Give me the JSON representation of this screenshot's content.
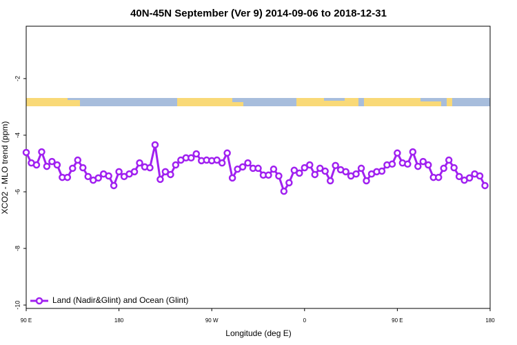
{
  "chart_data": {
    "type": "line",
    "title": "40N-45N September (Ver 9)   2014-09-06 to 2018-12-31",
    "x_label": "Longitude (deg E)",
    "y_label": "XCO2 - MLO trend (ppm)",
    "xlim": [
      90,
      540
    ],
    "xticks": [
      {
        "value": 90,
        "label": "90 E"
      },
      180,
      {
        "value": 270,
        "label": "90 W"
      },
      {
        "value": 360,
        "label": "0"
      },
      {
        "value": 450,
        "label": "90 E"
      },
      {
        "value": 540,
        "label": "180"
      }
    ],
    "ylim": [
      -10.12,
      -0.15
    ],
    "yticks": [
      -2,
      -4,
      -6,
      -8,
      -10
    ],
    "legend": "bottom-left",
    "x": [
      90,
      95,
      100,
      105,
      110,
      115,
      120,
      125,
      130,
      135,
      140,
      145,
      150,
      155,
      160,
      165,
      170,
      175,
      180,
      185,
      190,
      195,
      200,
      205,
      210,
      215,
      220,
      225,
      230,
      235,
      240,
      245,
      250,
      255,
      260,
      265,
      270,
      275,
      280,
      285,
      290,
      295,
      300,
      305,
      310,
      315,
      320,
      325,
      330,
      335,
      340,
      345,
      350,
      355,
      360,
      365,
      370,
      375,
      380,
      385,
      390,
      395,
      400,
      405,
      410,
      415,
      420,
      425,
      430,
      435,
      440,
      445,
      450,
      455,
      460,
      465,
      470,
      475,
      480,
      485,
      490,
      495,
      500,
      505,
      510,
      515,
      520,
      525,
      530,
      535
    ],
    "series": [
      {
        "name": "Land (Nadir&Glint) and Ocean (Glint)",
        "color": "#a020f0",
        "values": [
          -4.61,
          -4.98,
          -5.05,
          -4.59,
          -5.1,
          -4.93,
          -5.05,
          -5.49,
          -5.49,
          -5.17,
          -4.88,
          -5.15,
          -5.46,
          -5.59,
          -5.51,
          -5.37,
          -5.44,
          -5.78,
          -5.29,
          -5.46,
          -5.37,
          -5.29,
          -4.98,
          -5.12,
          -5.15,
          -4.34,
          -5.56,
          -5.29,
          -5.39,
          -5.05,
          -4.88,
          -4.8,
          -4.8,
          -4.66,
          -4.9,
          -4.88,
          -4.9,
          -4.88,
          -4.98,
          -4.63,
          -5.51,
          -5.2,
          -5.12,
          -4.98,
          -5.17,
          -5.17,
          -5.41,
          -5.41,
          -5.2,
          -5.44,
          -5.98,
          -5.68,
          -5.24,
          -5.34,
          -5.15,
          -5.05,
          -5.39,
          -5.17,
          -5.27,
          -5.61,
          -5.07,
          -5.22,
          -5.29,
          -5.44,
          -5.37,
          -5.17,
          -5.61,
          -5.37,
          -5.29,
          -5.27,
          -5.05,
          -5.02,
          -4.63,
          -4.98,
          -5.02,
          -4.59,
          -5.1,
          -4.93,
          -5.05,
          -5.49,
          -5.49,
          -5.17,
          -4.88,
          -5.15,
          -5.46,
          -5.59,
          -5.51,
          -5.37,
          -5.44,
          -5.78
        ]
      }
    ]
  }
}
